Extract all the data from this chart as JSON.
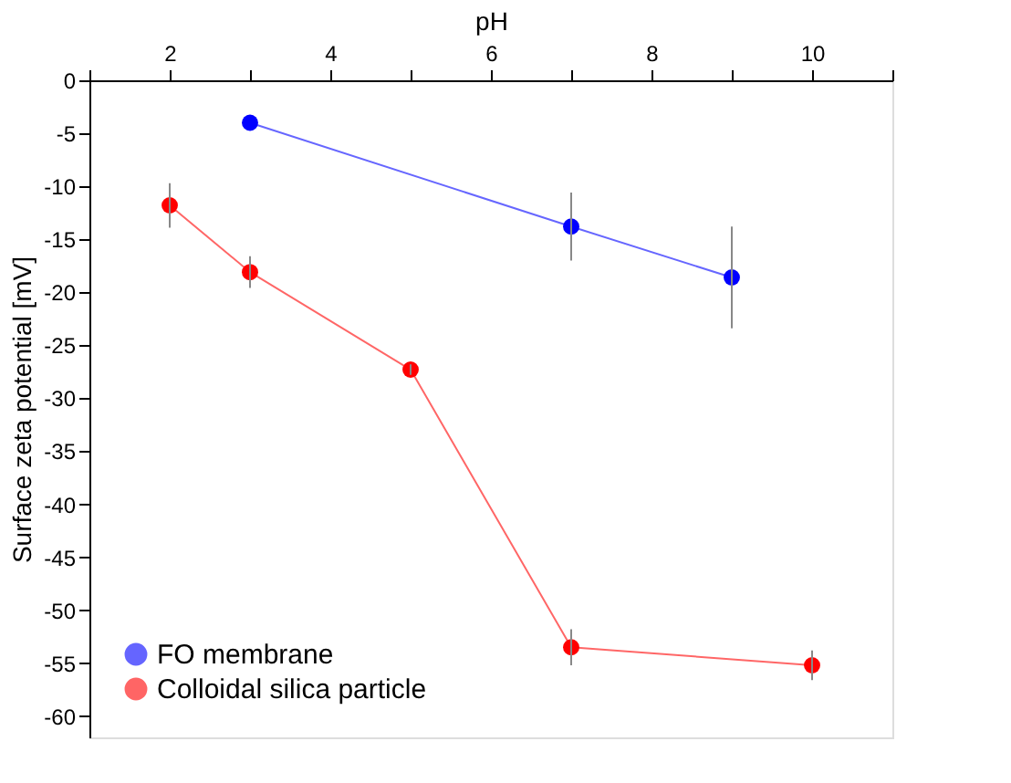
{
  "chart_data": {
    "type": "line",
    "xlabel": "pH",
    "ylabel": "Surface zeta potential [mV]",
    "xlim": [
      1,
      11
    ],
    "xticks": [
      {
        "value": 1,
        "label": null
      },
      2,
      {
        "value": 3,
        "label": null
      },
      4,
      {
        "value": 5,
        "label": null
      },
      6,
      {
        "value": 7,
        "label": null
      },
      8,
      {
        "value": 9,
        "label": null
      },
      10,
      {
        "value": 11,
        "label": null
      }
    ],
    "ylim": [
      -62,
      0
    ],
    "yticks": [
      0,
      -5,
      -10,
      -15,
      -20,
      -25,
      -30,
      -35,
      -40,
      -45,
      -50,
      -55,
      -60
    ],
    "grid": false,
    "legend": "bottom left",
    "marker": "circle",
    "line_style": "solid",
    "series": [
      {
        "name": "FO membrane",
        "color": "#0000ff",
        "x": [
          3,
          7,
          9
        ],
        "values": [
          -4,
          -13.8,
          -18.6
        ],
        "errors": [
          null,
          3.2,
          4.8
        ]
      },
      {
        "name": "Colloidal silica particle",
        "color": "#ff0000",
        "x": [
          2,
          3,
          5,
          7,
          10
        ],
        "values": [
          -11.8,
          -18.1,
          -27.3,
          -53.5,
          -55.2
        ],
        "errors": [
          2.1,
          1.5,
          0.5,
          1.7,
          1.4
        ]
      }
    ]
  }
}
